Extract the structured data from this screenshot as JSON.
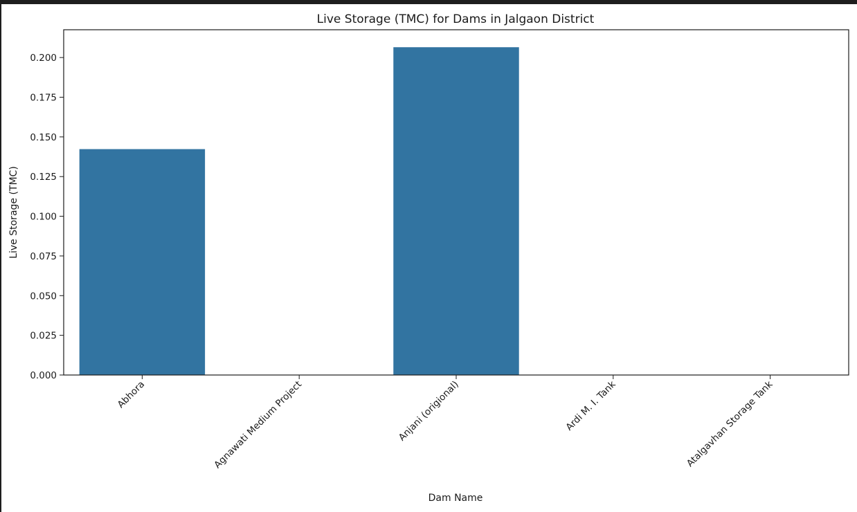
{
  "chart_data": {
    "type": "bar",
    "title": "Live Storage (TMC) for Dams in Jalgaon District",
    "xlabel": "Dam Name",
    "ylabel": "Live Storage (TMC)",
    "categories": [
      "Abhora",
      "Agnawati Medium Project",
      "Anjani (origional)",
      "Ardi M. I. Tank",
      "Atalgavhan Storage Tank"
    ],
    "values": [
      0.1423,
      0.0,
      0.2065,
      0.0,
      0.0
    ],
    "ylim": [
      0,
      0.2175
    ],
    "yticks": [
      "0.000",
      "0.025",
      "0.050",
      "0.075",
      "0.100",
      "0.125",
      "0.150",
      "0.175",
      "0.200"
    ],
    "grid": false,
    "legend": "none",
    "bar_color": "#3274a1",
    "axis_color": "#1a1a1a"
  }
}
